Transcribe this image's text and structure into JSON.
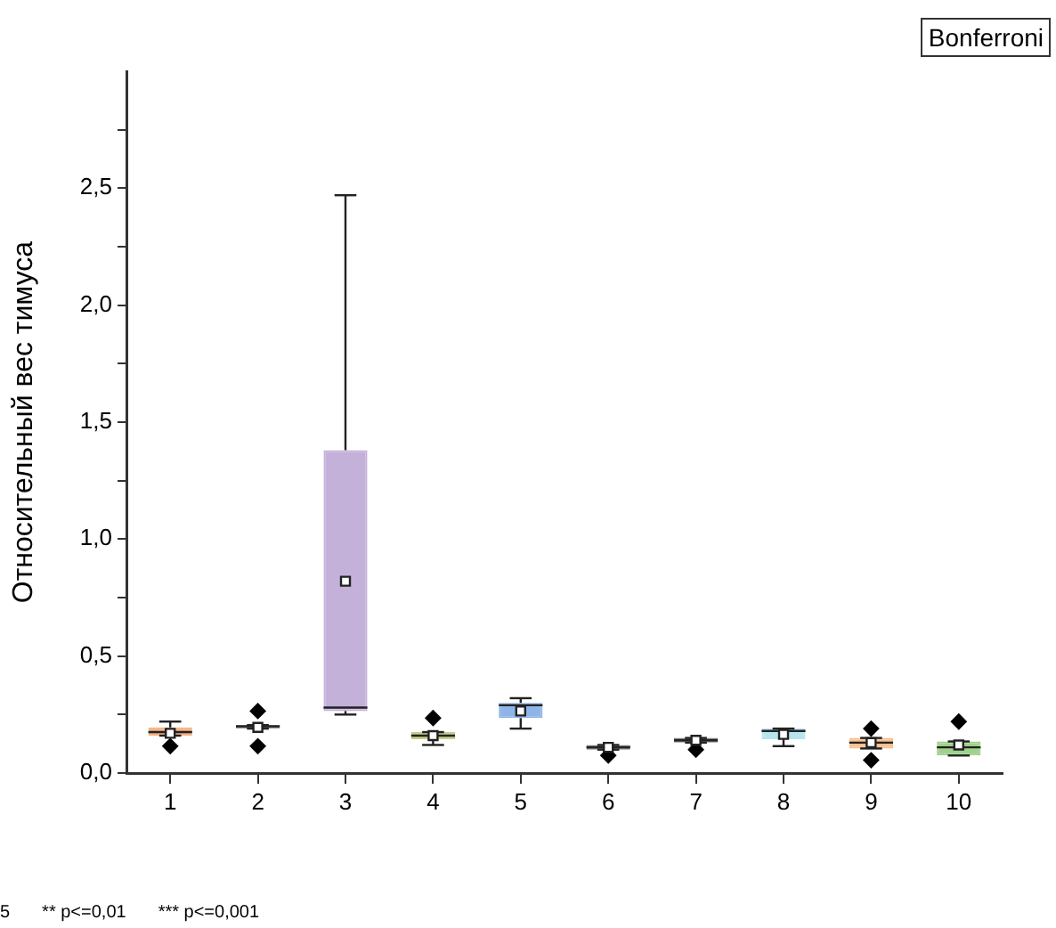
{
  "chart_data": {
    "type": "box",
    "title": "Bonferroni",
    "ylabel": "Относительный вес тимуса",
    "categories": [
      "1",
      "2",
      "3",
      "4",
      "5",
      "6",
      "7",
      "8",
      "9",
      "10"
    ],
    "colors": [
      "#f4b183",
      "#9a9a9a",
      "#c3b1d9",
      "#c9cc8a",
      "#8fb4e8",
      "#808080",
      "#808080",
      "#b7e4ee",
      "#f6c08e",
      "#9fd18b"
    ],
    "boxes": [
      {
        "low": 0.16,
        "q1": 0.16,
        "median": 0.175,
        "q3": 0.195,
        "high": 0.22,
        "mean": 0.17,
        "outliers": [
          0.115
        ]
      },
      {
        "low": 0.19,
        "q1": 0.19,
        "median": 0.2,
        "q3": 0.205,
        "high": 0.205,
        "mean": 0.195,
        "outliers": [
          0.265,
          0.115
        ]
      },
      {
        "low": 0.25,
        "q1": 0.265,
        "median": 0.28,
        "q3": 1.38,
        "high": 2.47,
        "mean": 0.82
      },
      {
        "low": 0.12,
        "q1": 0.145,
        "median": 0.16,
        "q3": 0.175,
        "high": 0.175,
        "mean": 0.16,
        "outliers": [
          0.235
        ]
      },
      {
        "low": 0.19,
        "q1": 0.235,
        "median": 0.29,
        "q3": 0.3,
        "high": 0.32,
        "mean": 0.265
      },
      {
        "low": 0.1,
        "q1": 0.1,
        "median": 0.11,
        "q3": 0.12,
        "high": 0.12,
        "mean": 0.11,
        "outliers": [
          0.075
        ]
      },
      {
        "low": 0.13,
        "q1": 0.13,
        "median": 0.14,
        "q3": 0.15,
        "high": 0.15,
        "mean": 0.14,
        "outliers": [
          0.1
        ]
      },
      {
        "low": 0.115,
        "q1": 0.145,
        "median": 0.18,
        "q3": 0.19,
        "high": 0.19,
        "mean": 0.165
      },
      {
        "low": 0.105,
        "q1": 0.105,
        "median": 0.13,
        "q3": 0.15,
        "high": 0.15,
        "mean": 0.13,
        "outliers": [
          0.19,
          0.055
        ]
      },
      {
        "low": 0.075,
        "q1": 0.075,
        "median": 0.11,
        "q3": 0.135,
        "high": 0.135,
        "mean": 0.12,
        "outliers": [
          0.22
        ]
      }
    ],
    "ylim": [
      0,
      3
    ],
    "yticks": [
      {
        "value": 0,
        "label": "0,0"
      },
      {
        "value": 0.25,
        "label": null
      },
      {
        "value": 0.5,
        "label": "0,5"
      },
      {
        "value": 0.75,
        "label": null
      },
      {
        "value": 1,
        "label": "1,0"
      },
      {
        "value": 1.25,
        "label": null
      },
      {
        "value": 1.5,
        "label": "1,5"
      },
      {
        "value": 1.75,
        "label": null
      },
      {
        "value": 2,
        "label": "2,0"
      },
      {
        "value": 2.25,
        "label": null
      },
      {
        "value": 2.5,
        "label": "2,5"
      },
      {
        "value": 2.75,
        "label": null
      }
    ],
    "grid": false,
    "legend": false,
    "marker": "diamond",
    "annotations": [
      "5",
      "** p<=0,01",
      "*** p<=0,001"
    ]
  }
}
